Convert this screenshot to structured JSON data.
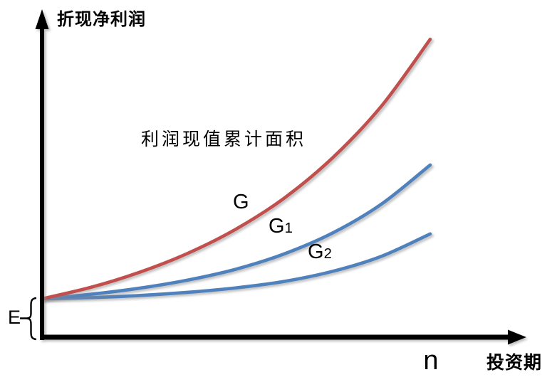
{
  "page": {
    "background": "#ffffff"
  },
  "chart_data": {
    "type": "line",
    "title": "",
    "y_axis_label": "折现净利润",
    "x_axis_label": "投资期",
    "annotation": "利润现值累计面积",
    "x_tick_label": "n",
    "y_bracket_label": "E",
    "axis_color": "#000000",
    "grid": "off",
    "x_range": [
      0,
      1
    ],
    "y_range_in_E_units": [
      0,
      7.4
    ],
    "x_axis_note": "x from 0 to n (investment period), single tick at n",
    "y_axis_note": "curves start at common value E on y-axis; values below are multiples of E",
    "series": [
      {
        "name": "G",
        "label_base": "G",
        "label_sub": "",
        "color": "#c0504d",
        "points": [
          [
            0,
            1
          ],
          [
            0.125,
            1.28
          ],
          [
            0.25,
            1.65
          ],
          [
            0.375,
            2.12
          ],
          [
            0.5,
            2.72
          ],
          [
            0.625,
            3.49
          ],
          [
            0.75,
            4.49
          ],
          [
            0.875,
            5.76
          ],
          [
            1,
            7.4
          ]
        ]
      },
      {
        "name": "G1",
        "label_base": "G",
        "label_sub": "1",
        "color": "#4f81bd",
        "points": [
          [
            0,
            1
          ],
          [
            0.125,
            1.11
          ],
          [
            0.25,
            1.26
          ],
          [
            0.375,
            1.46
          ],
          [
            0.5,
            1.73
          ],
          [
            0.625,
            2.11
          ],
          [
            0.75,
            2.63
          ],
          [
            0.875,
            3.34
          ],
          [
            1,
            4.3
          ]
        ]
      },
      {
        "name": "G2",
        "label_base": "G",
        "label_sub": "2",
        "color": "#4f81bd",
        "points": [
          [
            0,
            1
          ],
          [
            0.125,
            1.03
          ],
          [
            0.25,
            1.08
          ],
          [
            0.375,
            1.16
          ],
          [
            0.5,
            1.27
          ],
          [
            0.625,
            1.43
          ],
          [
            0.75,
            1.68
          ],
          [
            0.875,
            2.05
          ],
          [
            1,
            2.6
          ]
        ]
      }
    ],
    "end_marker_line": {
      "x": 1,
      "top_value": 7.4,
      "bottom_value": 0,
      "color": "#c0504d"
    }
  }
}
